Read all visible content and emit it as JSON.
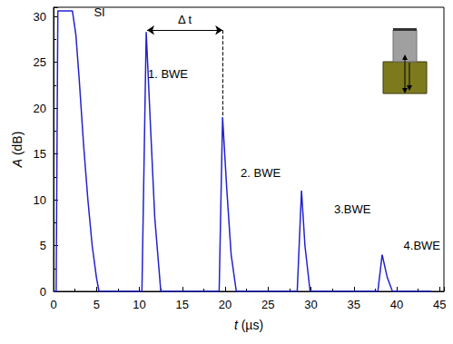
{
  "chart_data": {
    "type": "line",
    "x_label": "t (µs)",
    "y_label": "A (dB)",
    "x": [
      0,
      0.3,
      0.5,
      2.2,
      2.6,
      3,
      3.5,
      4,
      4.5,
      5,
      5.3,
      10.3,
      10.8,
      11.3,
      11.8,
      12.5,
      19.3,
      19.7,
      20.2,
      20.7,
      21.3,
      28.4,
      28.9,
      29.3,
      29.9,
      37.8,
      38.3,
      38.9,
      39.5,
      44
    ],
    "values": [
      0,
      0,
      30.6,
      30.6,
      28,
      23,
      16,
      10,
      5,
      1.5,
      0,
      0,
      28.3,
      18,
      8,
      0,
      0,
      19,
      11,
      4,
      0,
      0,
      11,
      5,
      0,
      0,
      4,
      1.5,
      0,
      0
    ],
    "color": "#2222cc",
    "xlim": [
      0,
      45.5
    ],
    "xticks": [
      0,
      5,
      10,
      15,
      20,
      25,
      30,
      35,
      40,
      45
    ],
    "ylim": [
      0,
      31
    ],
    "yticks": [
      0,
      5,
      10,
      15,
      20,
      25,
      30
    ],
    "grid": false,
    "annotations": [
      {
        "text": "SI",
        "x": 4.7,
        "y": 30.5
      },
      {
        "text": "1. BWE",
        "x": 11.0,
        "y": 23.7
      },
      {
        "text": "2. BWE",
        "x": 21.8,
        "y": 12.9
      },
      {
        "text": "3.BWE",
        "x": 32.7,
        "y": 9.0
      },
      {
        "text": "4.BWE",
        "x": 40.8,
        "y": 5.0
      }
    ],
    "interval_marker": {
      "label": "Δ t",
      "x": [
        10.9,
        19.7
      ],
      "y": 28.5
    }
  }
}
